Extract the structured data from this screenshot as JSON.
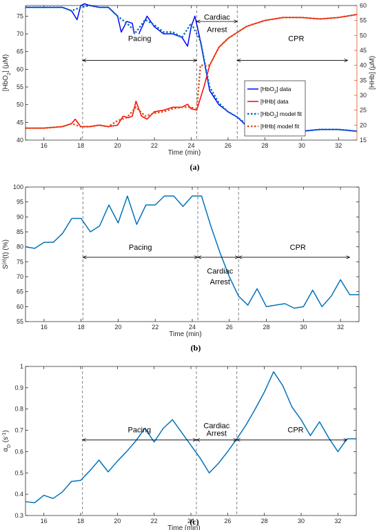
{
  "chart_data": [
    {
      "panel": "a",
      "caption": "(a)",
      "type": "line",
      "xlabel": "Time (min)",
      "ylabel": "[HbO2] (μM)",
      "ylabel_right": "[HHb] (μM)",
      "xlim": [
        15,
        33
      ],
      "ylim": [
        40,
        78
      ],
      "ylim_right": [
        15,
        60
      ],
      "xticks": [
        16,
        18,
        20,
        22,
        24,
        26,
        28,
        30,
        32
      ],
      "yticks": [
        40,
        45,
        50,
        55,
        60,
        65,
        70,
        75
      ],
      "yticks_right": [
        15,
        20,
        25,
        30,
        35,
        40,
        45,
        50,
        55,
        60
      ],
      "right_axis_color": "#d95319",
      "vlines": [
        18.1,
        24.3,
        26.5
      ],
      "annotations": [
        {
          "text": "Pacing",
          "x": 21.2,
          "y": 68
        },
        {
          "text": "Cardiac",
          "x": 25.4,
          "y": 74
        },
        {
          "text": "Arrest",
          "x": 25.4,
          "y": 70.5
        },
        {
          "text": "CPR",
          "x": 29.7,
          "y": 68
        }
      ],
      "arrows": [
        {
          "from": 18.1,
          "to": 24.3,
          "y": 62.5
        },
        {
          "from": 24.3,
          "to": 26.5,
          "y": 73.5
        },
        {
          "from": 26.5,
          "to": 32.5,
          "y": 62.5
        }
      ],
      "legend_position": "right",
      "series": [
        {
          "name": "[HbO2] data",
          "axis": "left",
          "color": "#0000ff",
          "style": "solid",
          "x": [
            15,
            16,
            17,
            17.5,
            17.8,
            18,
            18.2,
            18.5,
            19,
            19.5,
            20,
            20.2,
            20.5,
            20.8,
            21,
            21.2,
            21.6,
            22,
            22.5,
            23,
            23.5,
            23.8,
            24,
            24.2,
            24.5,
            25,
            25.5,
            26,
            26.5,
            27,
            27.5,
            28,
            29,
            30,
            31,
            32,
            33
          ],
          "y": [
            77.5,
            77.5,
            77.5,
            76.5,
            74,
            78,
            78.5,
            78,
            77.5,
            77.5,
            75,
            70.5,
            73.5,
            73,
            67.5,
            70.5,
            75,
            72,
            70,
            70,
            69,
            66.5,
            72,
            75,
            68,
            54,
            50,
            48,
            46.5,
            44,
            45,
            43.5,
            42,
            42.5,
            43,
            43,
            42.5
          ]
        },
        {
          "name": "[HHb] data",
          "axis": "right",
          "color": "#ff0000",
          "style": "solid",
          "x": [
            15,
            16,
            17,
            17.5,
            17.7,
            18,
            18.5,
            19,
            19.5,
            20,
            20.3,
            20.6,
            20.8,
            21,
            21.3,
            21.6,
            22,
            22.5,
            23,
            23.5,
            23.8,
            24,
            24.3,
            24.7,
            25,
            25.5,
            26,
            26.5,
            27,
            28,
            29,
            30,
            31,
            32,
            33
          ],
          "y": [
            19,
            19,
            19.5,
            20.5,
            22,
            19.5,
            19.5,
            20,
            19.5,
            20,
            23,
            22.5,
            23,
            28,
            23,
            22,
            24.5,
            25,
            26,
            26,
            27,
            25.5,
            25,
            33,
            40,
            46,
            49,
            51,
            53,
            55,
            56,
            56,
            55.5,
            56,
            57
          ]
        },
        {
          "name": "[HbO2] model fit",
          "axis": "left",
          "color": "#0072bd",
          "style": "dotted",
          "x": [
            15,
            16,
            17,
            17.5,
            18,
            18.5,
            19,
            19.5,
            20,
            20.5,
            21,
            21.5,
            22,
            22.5,
            23,
            23.5,
            24,
            24.5,
            25,
            25.5,
            26,
            26.5,
            27,
            28,
            29,
            30,
            31,
            32,
            33
          ],
          "y": [
            77.5,
            77.5,
            77.5,
            76.5,
            77.5,
            78,
            77.5,
            77.5,
            75,
            73,
            70.5,
            74,
            72.5,
            70.5,
            70.5,
            69,
            73,
            68,
            55,
            50.5,
            48,
            46.5,
            44.5,
            44.5,
            42.5,
            42.5,
            43,
            43,
            42.5
          ]
        },
        {
          "name": "[HHb] model fit",
          "axis": "right",
          "color": "#d95319",
          "style": "dotted",
          "x": [
            15,
            16,
            17,
            17.5,
            18,
            18.5,
            19,
            19.5,
            20,
            20.5,
            21,
            21.5,
            22,
            22.5,
            23,
            23.5,
            24,
            24.3,
            24.5,
            25,
            25.5,
            26,
            26.5,
            27,
            28,
            29,
            30,
            31,
            32,
            33
          ],
          "y": [
            19,
            19,
            19.5,
            20.5,
            19.5,
            19.5,
            20,
            19.5,
            21.5,
            22.5,
            26,
            23,
            24,
            24.5,
            25.5,
            26,
            26,
            25,
            40,
            40,
            46,
            49,
            51,
            53,
            55,
            56,
            56,
            55.5,
            56,
            57
          ]
        }
      ]
    },
    {
      "panel": "b",
      "caption": "(b)",
      "type": "line",
      "xlabel": "Time (min)",
      "ylabel": "S(a)(t) (%)",
      "xlim": [
        15,
        33
      ],
      "ylim": [
        55,
        100
      ],
      "xticks": [
        16,
        18,
        20,
        22,
        24,
        26,
        28,
        30,
        32
      ],
      "yticks": [
        55,
        60,
        65,
        70,
        75,
        80,
        85,
        90,
        95,
        100
      ],
      "vlines": [
        18.1,
        24.3,
        26.5
      ],
      "annotations": [
        {
          "text": "Pacing",
          "x": 21.2,
          "y": 79
        },
        {
          "text": "Cardiac",
          "x": 25.5,
          "y": 71
        },
        {
          "text": "Arrest",
          "x": 25.5,
          "y": 67.5
        },
        {
          "text": "CPR",
          "x": 29.7,
          "y": 79
        }
      ],
      "arrows": [
        {
          "from": 18.1,
          "to": 24.3,
          "y": 76.5
        },
        {
          "from": 24.3,
          "to": 26.5,
          "y": 76.5
        },
        {
          "from": 26.5,
          "to": 32.5,
          "y": 76.5
        }
      ],
      "series": [
        {
          "name": "",
          "color": "#0072bd",
          "x": [
            15,
            15.5,
            16,
            16.5,
            17,
            17.5,
            18,
            18.5,
            19,
            19.5,
            20,
            20.5,
            21,
            21.5,
            22,
            22.5,
            23,
            23.5,
            24,
            24.5,
            25,
            25.5,
            26,
            26.5,
            27,
            27.5,
            28,
            28.5,
            29,
            29.5,
            30,
            30.5,
            31,
            31.5,
            32,
            32.5,
            33
          ],
          "y": [
            80,
            79.5,
            81.5,
            81.5,
            84.5,
            89.5,
            89.5,
            85,
            87,
            94,
            88,
            97,
            87.5,
            94,
            94,
            97,
            97,
            93.5,
            97,
            97,
            87,
            78,
            70,
            63.5,
            60.5,
            66,
            60,
            60.5,
            61,
            59.5,
            60,
            65.5,
            60,
            63.5,
            69,
            64,
            64
          ]
        }
      ]
    },
    {
      "panel": "c",
      "caption": "(c)",
      "type": "line",
      "xlabel": "Time (min)",
      "ylabel": "αD (s-1)",
      "xlim": [
        15,
        33
      ],
      "ylim": [
        0.3,
        1
      ],
      "xticks": [
        16,
        18,
        20,
        22,
        24,
        26,
        28,
        30,
        32
      ],
      "yticks": [
        0.3,
        0.4,
        0.5,
        0.6,
        0.7,
        0.8,
        0.9,
        1
      ],
      "vlines": [
        18.1,
        24.3,
        26.5
      ],
      "annotations": [
        {
          "text": "Pacing",
          "x": 21.2,
          "y": 0.69
        },
        {
          "text": "Cardiac",
          "x": 25.4,
          "y": 0.71
        },
        {
          "text": "Arrest",
          "x": 25.4,
          "y": 0.675
        },
        {
          "text": "CPR",
          "x": 29.7,
          "y": 0.69
        }
      ],
      "arrows": [
        {
          "from": 18.1,
          "to": 24.3,
          "y": 0.655
        },
        {
          "from": 24.3,
          "to": 26.5,
          "y": 0.655
        },
        {
          "from": 26.5,
          "to": 32.5,
          "y": 0.655
        }
      ],
      "series": [
        {
          "name": "",
          "color": "#0072bd",
          "x": [
            15,
            15.5,
            16,
            16.5,
            17,
            17.5,
            18,
            18.5,
            19,
            19.5,
            20,
            20.5,
            21,
            21.5,
            22,
            22.5,
            23,
            23.5,
            24,
            24.5,
            25,
            25.5,
            26,
            26.5,
            27,
            27.5,
            28,
            28.5,
            29,
            29.5,
            30,
            30.5,
            31,
            31.5,
            32,
            32.5,
            33
          ],
          "y": [
            0.365,
            0.36,
            0.395,
            0.38,
            0.41,
            0.46,
            0.465,
            0.51,
            0.56,
            0.505,
            0.555,
            0.6,
            0.65,
            0.71,
            0.645,
            0.71,
            0.75,
            0.69,
            0.63,
            0.57,
            0.5,
            0.545,
            0.6,
            0.66,
            0.725,
            0.8,
            0.88,
            0.975,
            0.91,
            0.81,
            0.75,
            0.675,
            0.74,
            0.665,
            0.6,
            0.66,
            0.66
          ]
        }
      ]
    }
  ]
}
